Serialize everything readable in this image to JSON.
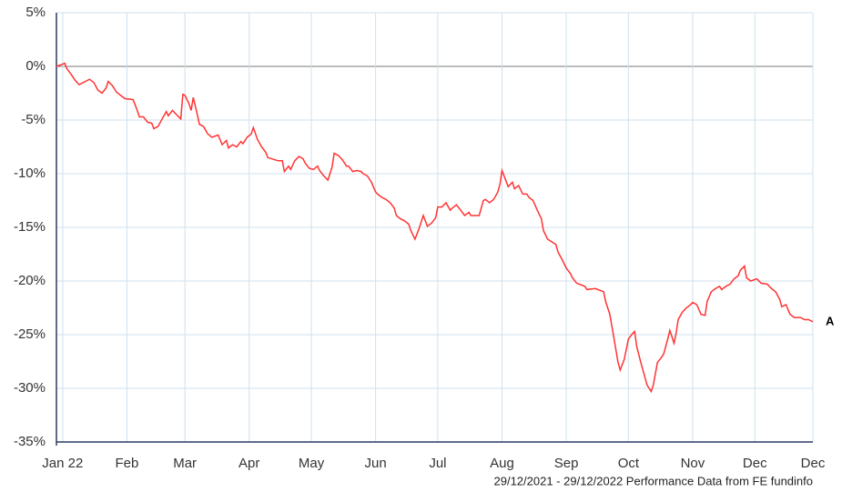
{
  "chart_data": {
    "type": "line",
    "footer": "29/12/2021 - 29/12/2022 Performance Data from FE fundinfo",
    "xlim": [
      0,
      365
    ],
    "xticks": [
      {
        "value": 3,
        "label": "Jan 22"
      },
      {
        "value": 34,
        "label": "Feb"
      },
      {
        "value": 62,
        "label": "Mar"
      },
      {
        "value": 93,
        "label": "Apr"
      },
      {
        "value": 123,
        "label": "May"
      },
      {
        "value": 154,
        "label": "Jun"
      },
      {
        "value": 184,
        "label": "Jul"
      },
      {
        "value": 215,
        "label": "Aug"
      },
      {
        "value": 246,
        "label": "Sep"
      },
      {
        "value": 276,
        "label": "Oct"
      },
      {
        "value": 307,
        "label": "Nov"
      },
      {
        "value": 337,
        "label": "Dec"
      },
      {
        "value": 365,
        "label": "Dec"
      }
    ],
    "ylim": [
      -35,
      5
    ],
    "yticks": [
      {
        "value": -35,
        "label": "-35%"
      },
      {
        "value": -30,
        "label": "-30%"
      },
      {
        "value": -25,
        "label": "-25%"
      },
      {
        "value": -20,
        "label": "-20%"
      },
      {
        "value": -15,
        "label": "-15%"
      },
      {
        "value": -10,
        "label": "-10%"
      },
      {
        "value": -5,
        "label": "-5%"
      },
      {
        "value": 0,
        "label": "0%"
      },
      {
        "value": 5,
        "label": "5%"
      }
    ],
    "grid": true,
    "series": [
      {
        "name": "A",
        "color": "#ff3333",
        "x": [
          0,
          3,
          4,
          5,
          7,
          9,
          11,
          14,
          16,
          18,
          20,
          22,
          24,
          25,
          27,
          29,
          31,
          33,
          37,
          39,
          40,
          42,
          44,
          46,
          47,
          49,
          51,
          53,
          54,
          56,
          58,
          60,
          61,
          62,
          64,
          65,
          66,
          68,
          69,
          71,
          73,
          75,
          78,
          80,
          82,
          83,
          85,
          87,
          89,
          90,
          92,
          94,
          95,
          97,
          99,
          101,
          102,
          107,
          109,
          110,
          112,
          113,
          115,
          117,
          119,
          120,
          122,
          124,
          126,
          127,
          129,
          131,
          133,
          134,
          136,
          138,
          140,
          141,
          143,
          145,
          147,
          148,
          150,
          152,
          154,
          155,
          157,
          159,
          161,
          163,
          164,
          166,
          168,
          170,
          171,
          173,
          175,
          177,
          178,
          179,
          181,
          183,
          184,
          186,
          188,
          190,
          191,
          193,
          195,
          197,
          199,
          200,
          204,
          206,
          207,
          209,
          211,
          213,
          214,
          215,
          217,
          218,
          220,
          221,
          223,
          225,
          227,
          228,
          230,
          232,
          234,
          235,
          237,
          241,
          242,
          244,
          246,
          248,
          249,
          251,
          255,
          256,
          260,
          264,
          265,
          267,
          269,
          271,
          272,
          274,
          276,
          278,
          279,
          280,
          282,
          284,
          285,
          287,
          288,
          290,
          292,
          293,
          295,
          296,
          298,
          299,
          300,
          302,
          304,
          306,
          307,
          309,
          311,
          313,
          314,
          316,
          318,
          320,
          321,
          323,
          325,
          327,
          329,
          330,
          332,
          333,
          335,
          338,
          340,
          343,
          345,
          347,
          349,
          350,
          352,
          354,
          356,
          359,
          361,
          363,
          365
        ],
        "values": [
          0,
          0.2,
          0.3,
          -0.2,
          -0.7,
          -1.3,
          -1.7,
          -1.4,
          -1.2,
          -1.5,
          -2.2,
          -2.5,
          -2.0,
          -1.4,
          -1.8,
          -2.4,
          -2.7,
          -3.0,
          -3.1,
          -4.1,
          -4.7,
          -4.7,
          -5.2,
          -5.3,
          -5.8,
          -5.6,
          -4.9,
          -4.2,
          -4.6,
          -4.1,
          -4.5,
          -4.9,
          -2.6,
          -2.7,
          -3.5,
          -4.1,
          -2.9,
          -4.5,
          -5.4,
          -5.6,
          -6.3,
          -6.6,
          -6.4,
          -7.3,
          -6.9,
          -7.6,
          -7.3,
          -7.5,
          -7.0,
          -7.2,
          -6.6,
          -6.3,
          -5.7,
          -6.8,
          -7.5,
          -8.0,
          -8.5,
          -8.8,
          -8.8,
          -9.8,
          -9.3,
          -9.6,
          -8.8,
          -8.4,
          -8.6,
          -9.0,
          -9.5,
          -9.6,
          -9.3,
          -9.7,
          -10.2,
          -10.6,
          -9.4,
          -8.1,
          -8.3,
          -8.7,
          -9.3,
          -9.3,
          -9.8,
          -9.7,
          -9.8,
          -10.0,
          -10.2,
          -10.8,
          -11.7,
          -11.9,
          -12.2,
          -12.4,
          -12.7,
          -13.2,
          -13.9,
          -14.2,
          -14.4,
          -14.7,
          -15.3,
          -16.1,
          -15.1,
          -13.9,
          -14.4,
          -14.9,
          -14.6,
          -14.1,
          -13.1,
          -13.1,
          -12.7,
          -13.4,
          -13.2,
          -12.9,
          -13.4,
          -13.9,
          -13.6,
          -13.9,
          -13.9,
          -12.5,
          -12.4,
          -12.7,
          -12.4,
          -11.7,
          -11.0,
          -9.7,
          -10.7,
          -11.2,
          -10.8,
          -11.4,
          -11.1,
          -11.9,
          -11.9,
          -12.2,
          -12.5,
          -13.4,
          -14.2,
          -15.3,
          -16.1,
          -16.6,
          -17.3,
          -18.0,
          -18.8,
          -19.3,
          -19.7,
          -20.2,
          -20.5,
          -20.8,
          -20.7,
          -21.0,
          -21.9,
          -23.1,
          -25.3,
          -27.6,
          -28.3,
          -27.3,
          -25.4,
          -24.9,
          -24.7,
          -26.1,
          -27.6,
          -29.0,
          -29.7,
          -30.3,
          -29.7,
          -27.6,
          -27.1,
          -26.8,
          -25.4,
          -24.6,
          -25.8,
          -24.9,
          -23.6,
          -22.9,
          -22.5,
          -22.2,
          -22.0,
          -22.2,
          -23.1,
          -23.2,
          -21.9,
          -21.0,
          -20.7,
          -20.5,
          -20.8,
          -20.5,
          -20.3,
          -19.8,
          -19.5,
          -19.0,
          -18.6,
          -19.7,
          -20.0,
          -19.8,
          -20.2,
          -20.3,
          -20.7,
          -21.0,
          -21.7,
          -22.4,
          -22.2,
          -23.1,
          -23.4,
          -23.4,
          -23.6,
          -23.6,
          -23.8
        ]
      }
    ]
  }
}
